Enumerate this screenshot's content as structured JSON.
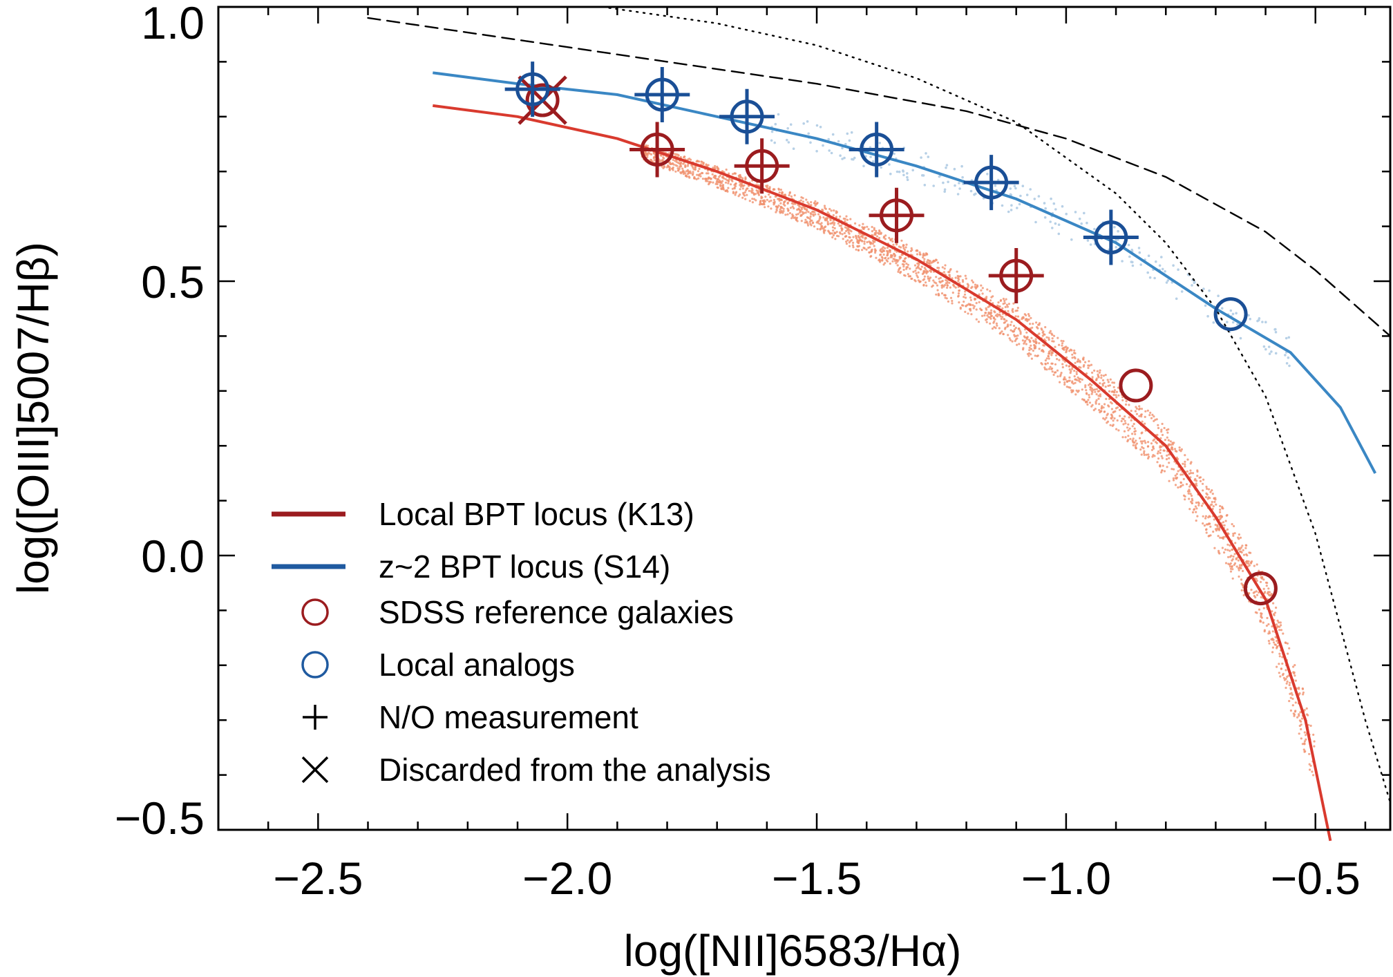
{
  "chart_data": {
    "type": "scatter",
    "title": "",
    "xlabel": "log([NII]6583/Hα)",
    "ylabel": "log([OIII]5007/Hβ)",
    "xlim": [
      -2.7,
      -0.35
    ],
    "ylim": [
      -0.5,
      1.0
    ],
    "x_ticks": [
      -2.5,
      -2.0,
      -1.5,
      -1.0,
      -0.5
    ],
    "x_tick_labels": [
      "−2.5",
      "−2.0",
      "−1.5",
      "−1.0",
      "−0.5"
    ],
    "y_ticks": [
      -0.5,
      0.0,
      0.5,
      1.0
    ],
    "y_tick_labels": [
      "−0.5",
      "0.0",
      "0.5",
      "1.0"
    ],
    "grid": false,
    "legend_position": "bottom-left",
    "colors": {
      "local_locus": "#d93a2e",
      "z2_locus": "#3a87c4",
      "sdss": "#9b1c1f",
      "analogs": "#1a4f96",
      "local_cloud": "#f0916e",
      "z2_cloud": "#b7d0e6",
      "legend_red": "#9b1c1f",
      "legend_blue": "#1f5aa0"
    },
    "series": [
      {
        "name": "Local BPT locus (K13)",
        "kind": "line",
        "x": [
          -2.27,
          -2.1,
          -1.9,
          -1.7,
          -1.5,
          -1.3,
          -1.1,
          -0.95,
          -0.8,
          -0.7,
          -0.6,
          -0.52,
          -0.47
        ],
        "y": [
          0.82,
          0.8,
          0.76,
          0.7,
          0.63,
          0.54,
          0.43,
          0.32,
          0.2,
          0.07,
          -0.08,
          -0.3,
          -0.52
        ]
      },
      {
        "name": "z~2 BPT locus (S14)",
        "kind": "line",
        "x": [
          -2.27,
          -2.1,
          -1.9,
          -1.7,
          -1.5,
          -1.3,
          -1.1,
          -0.9,
          -0.7,
          -0.55,
          -0.45,
          -0.38
        ],
        "y": [
          0.88,
          0.86,
          0.84,
          0.8,
          0.76,
          0.71,
          0.65,
          0.57,
          0.45,
          0.37,
          0.27,
          0.15
        ]
      },
      {
        "name": "SDSS reference galaxies",
        "kind": "markers",
        "x": [
          -2.05,
          -1.82,
          -1.61,
          -1.34,
          -1.1,
          -0.86,
          -0.61
        ],
        "y": [
          0.83,
          0.74,
          0.71,
          0.62,
          0.51,
          0.31,
          -0.06
        ],
        "no_measured": [
          false,
          true,
          true,
          true,
          true,
          false,
          false
        ],
        "discarded": [
          true,
          false,
          false,
          false,
          false,
          false,
          false
        ]
      },
      {
        "name": "Local analogs",
        "kind": "markers",
        "x": [
          -2.07,
          -1.81,
          -1.64,
          -1.38,
          -1.15,
          -0.91,
          -0.67
        ],
        "y": [
          0.85,
          0.84,
          0.8,
          0.74,
          0.68,
          0.58,
          0.44
        ],
        "no_measured": [
          true,
          true,
          true,
          true,
          true,
          true,
          false
        ],
        "discarded": [
          false,
          false,
          false,
          false,
          false,
          false,
          false
        ]
      }
    ],
    "reference_lines": [
      {
        "kind": "dashed",
        "x": [
          -2.4,
          -2.1,
          -1.8,
          -1.5,
          -1.2,
          -1.0,
          -0.8,
          -0.6,
          -0.5,
          -0.4,
          -0.35
        ],
        "y": [
          0.98,
          0.94,
          0.9,
          0.86,
          0.81,
          0.76,
          0.69,
          0.59,
          0.52,
          0.44,
          0.4
        ]
      },
      {
        "kind": "dotted",
        "x": [
          -1.93,
          -1.7,
          -1.5,
          -1.3,
          -1.1,
          -0.9,
          -0.8,
          -0.7,
          -0.6,
          -0.5,
          -0.45,
          -0.4,
          -0.35
        ],
        "y": [
          1.0,
          0.97,
          0.93,
          0.87,
          0.79,
          0.66,
          0.57,
          0.45,
          0.29,
          0.04,
          -0.13,
          -0.3,
          -0.45
        ]
      }
    ],
    "legend": [
      {
        "label": "Local BPT locus (K13)",
        "symbol": "line",
        "color": "#9b1c1f"
      },
      {
        "label": "z~2 BPT locus (S14)",
        "symbol": "line",
        "color": "#1f5aa0"
      },
      {
        "label": "SDSS reference galaxies",
        "symbol": "circle",
        "color": "#9b1c1f"
      },
      {
        "label": "Local analogs",
        "symbol": "circle",
        "color": "#1f5aa0"
      },
      {
        "label": "N/O measurement",
        "symbol": "plus",
        "color": "#000000"
      },
      {
        "label": "Discarded from the analysis",
        "symbol": "cross",
        "color": "#000000"
      }
    ]
  }
}
